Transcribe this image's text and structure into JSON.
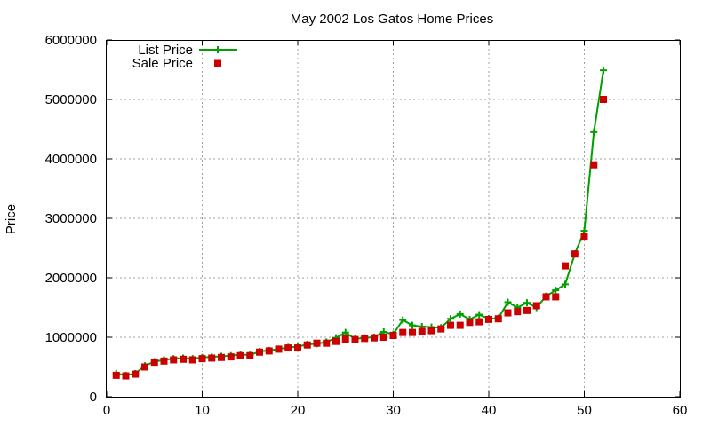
{
  "chart_data": {
    "type": "scatter",
    "title": "May 2002 Los Gatos Home Prices",
    "xlabel": "",
    "ylabel": "Price",
    "xlim": [
      0,
      60
    ],
    "ylim": [
      0,
      6000000
    ],
    "x_ticks": [
      "0",
      "10",
      "20",
      "30",
      "40",
      "50",
      "60"
    ],
    "y_ticks": [
      "0",
      "1000000",
      "2000000",
      "3000000",
      "4000000",
      "5000000",
      "6000000"
    ],
    "grid": true,
    "legend_position": "top-left",
    "series": [
      {
        "name": "List Price",
        "style": "line+cross",
        "color": "#00a000",
        "points": [
          [
            1,
            390000
          ],
          [
            2,
            360000
          ],
          [
            3,
            390000
          ],
          [
            4,
            520000
          ],
          [
            5,
            590000
          ],
          [
            6,
            620000
          ],
          [
            7,
            640000
          ],
          [
            8,
            650000
          ],
          [
            9,
            640000
          ],
          [
            10,
            660000
          ],
          [
            11,
            670000
          ],
          [
            12,
            680000
          ],
          [
            13,
            690000
          ],
          [
            14,
            710000
          ],
          [
            15,
            700000
          ],
          [
            16,
            760000
          ],
          [
            17,
            780000
          ],
          [
            18,
            800000
          ],
          [
            19,
            830000
          ],
          [
            20,
            840000
          ],
          [
            21,
            880000
          ],
          [
            22,
            890000
          ],
          [
            23,
            920000
          ],
          [
            24,
            990000
          ],
          [
            25,
            1080000
          ],
          [
            26,
            970000
          ],
          [
            27,
            990000
          ],
          [
            28,
            1000000
          ],
          [
            29,
            1090000
          ],
          [
            30,
            1050000
          ],
          [
            31,
            1290000
          ],
          [
            32,
            1200000
          ],
          [
            33,
            1180000
          ],
          [
            34,
            1170000
          ],
          [
            35,
            1160000
          ],
          [
            36,
            1310000
          ],
          [
            37,
            1390000
          ],
          [
            38,
            1300000
          ],
          [
            39,
            1380000
          ],
          [
            40,
            1310000
          ],
          [
            41,
            1320000
          ],
          [
            42,
            1590000
          ],
          [
            43,
            1500000
          ],
          [
            44,
            1580000
          ],
          [
            45,
            1500000
          ],
          [
            46,
            1690000
          ],
          [
            47,
            1790000
          ],
          [
            48,
            1890000
          ],
          [
            49,
            2400000
          ],
          [
            50,
            2790000
          ],
          [
            51,
            4450000
          ],
          [
            52,
            5490000
          ]
        ]
      },
      {
        "name": "Sale Price",
        "style": "square",
        "color": "#cc0000",
        "points": [
          [
            1,
            360000
          ],
          [
            2,
            350000
          ],
          [
            3,
            380000
          ],
          [
            4,
            500000
          ],
          [
            5,
            580000
          ],
          [
            6,
            600000
          ],
          [
            7,
            620000
          ],
          [
            8,
            630000
          ],
          [
            9,
            620000
          ],
          [
            10,
            640000
          ],
          [
            11,
            650000
          ],
          [
            12,
            660000
          ],
          [
            13,
            670000
          ],
          [
            14,
            690000
          ],
          [
            15,
            690000
          ],
          [
            16,
            750000
          ],
          [
            17,
            770000
          ],
          [
            18,
            800000
          ],
          [
            19,
            820000
          ],
          [
            20,
            820000
          ],
          [
            21,
            870000
          ],
          [
            22,
            900000
          ],
          [
            23,
            900000
          ],
          [
            24,
            930000
          ],
          [
            25,
            970000
          ],
          [
            26,
            960000
          ],
          [
            27,
            980000
          ],
          [
            28,
            990000
          ],
          [
            29,
            1000000
          ],
          [
            30,
            1030000
          ],
          [
            31,
            1080000
          ],
          [
            32,
            1080000
          ],
          [
            33,
            1100000
          ],
          [
            34,
            1110000
          ],
          [
            35,
            1140000
          ],
          [
            36,
            1200000
          ],
          [
            37,
            1200000
          ],
          [
            38,
            1250000
          ],
          [
            39,
            1260000
          ],
          [
            40,
            1300000
          ],
          [
            41,
            1310000
          ],
          [
            42,
            1410000
          ],
          [
            43,
            1430000
          ],
          [
            44,
            1450000
          ],
          [
            45,
            1530000
          ],
          [
            46,
            1680000
          ],
          [
            47,
            1680000
          ],
          [
            48,
            2200000
          ],
          [
            49,
            2400000
          ],
          [
            50,
            2700000
          ],
          [
            51,
            3900000
          ],
          [
            52,
            5000000
          ]
        ]
      }
    ]
  }
}
